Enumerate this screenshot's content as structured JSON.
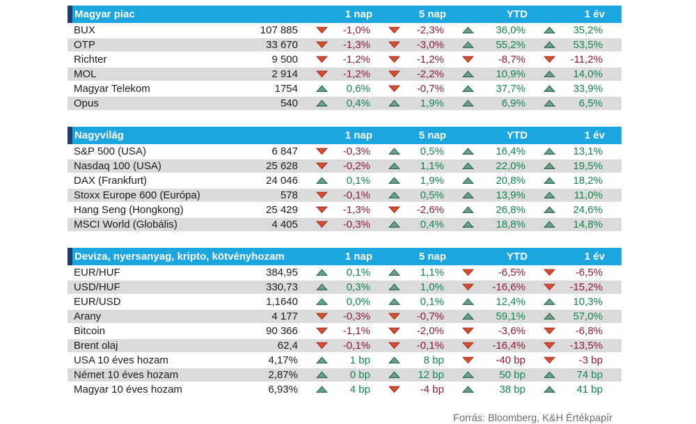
{
  "colors": {
    "header_cyan": "#1BA6DF",
    "accent_navy": "#1F3F6E",
    "row_gray": "#DBDBDB",
    "up_triangle_fill": "#6CA089",
    "up_triangle_stroke": "#2F6B52",
    "down_triangle_fill": "#D05030",
    "down_triangle_stroke": "#A83226",
    "up_text": "#12854C",
    "down_text": "#8E1A38"
  },
  "footer": {
    "source": "Forrás: Bloomberg, K&H Értékpapír"
  },
  "chart_data": [
    {
      "type": "table",
      "title": "Magyar piac",
      "columns": [
        "1 nap",
        "5 nap",
        "YTD",
        "1 év"
      ],
      "rows": [
        {
          "name": "BUX",
          "value": "107 885",
          "changes": [
            {
              "dir": "down",
              "text": "-1,0%"
            },
            {
              "dir": "down",
              "text": "-2,3%"
            },
            {
              "dir": "up",
              "text": "36,0%"
            },
            {
              "dir": "up",
              "text": "35,2%"
            }
          ]
        },
        {
          "name": "OTP",
          "value": "33 670",
          "changes": [
            {
              "dir": "down",
              "text": "-1,3%"
            },
            {
              "dir": "down",
              "text": "-3,0%"
            },
            {
              "dir": "up",
              "text": "55,2%"
            },
            {
              "dir": "up",
              "text": "53,5%"
            }
          ]
        },
        {
          "name": "Richter",
          "value": "9 500",
          "changes": [
            {
              "dir": "down",
              "text": "-1,2%"
            },
            {
              "dir": "down",
              "text": "-1,2%"
            },
            {
              "dir": "down",
              "text": "-8,7%"
            },
            {
              "dir": "down",
              "text": "-11,2%"
            }
          ]
        },
        {
          "name": "MOL",
          "value": "2 914",
          "changes": [
            {
              "dir": "down",
              "text": "-1,2%"
            },
            {
              "dir": "down",
              "text": "-2,2%"
            },
            {
              "dir": "up",
              "text": "10,9%"
            },
            {
              "dir": "up",
              "text": "14,0%"
            }
          ]
        },
        {
          "name": "Magyar Telekom",
          "value": "1754",
          "changes": [
            {
              "dir": "up",
              "text": "0,6%"
            },
            {
              "dir": "down",
              "text": "-0,7%"
            },
            {
              "dir": "up",
              "text": "37,7%"
            },
            {
              "dir": "up",
              "text": "33,9%"
            }
          ]
        },
        {
          "name": "Opus",
          "value": "540",
          "changes": [
            {
              "dir": "up",
              "text": "0,4%"
            },
            {
              "dir": "up",
              "text": "1,9%"
            },
            {
              "dir": "up",
              "text": "6,9%"
            },
            {
              "dir": "up",
              "text": "6,5%"
            }
          ]
        }
      ]
    },
    {
      "type": "table",
      "title": "Nagyvilág",
      "columns": [
        "1 nap",
        "5 nap",
        "YTD",
        "1 év"
      ],
      "rows": [
        {
          "name": "S&P 500 (USA)",
          "value": "6 847",
          "changes": [
            {
              "dir": "down",
              "text": "-0,3%"
            },
            {
              "dir": "up",
              "text": "0,5%"
            },
            {
              "dir": "up",
              "text": "16,4%"
            },
            {
              "dir": "up",
              "text": "13,1%"
            }
          ]
        },
        {
          "name": "Nasdaq 100 (USA)",
          "value": "25 628",
          "changes": [
            {
              "dir": "down",
              "text": "-0,2%"
            },
            {
              "dir": "up",
              "text": "1,1%"
            },
            {
              "dir": "up",
              "text": "22,0%"
            },
            {
              "dir": "up",
              "text": "19,5%"
            }
          ]
        },
        {
          "name": "DAX (Frankfurt)",
          "value": "24 046",
          "changes": [
            {
              "dir": "up",
              "text": "0,1%"
            },
            {
              "dir": "up",
              "text": "1,9%"
            },
            {
              "dir": "up",
              "text": "20,8%"
            },
            {
              "dir": "up",
              "text": "18,2%"
            }
          ]
        },
        {
          "name": "Stoxx Europe 600 (Európa)",
          "value": "578",
          "changes": [
            {
              "dir": "down",
              "text": "-0,1%"
            },
            {
              "dir": "up",
              "text": "0,5%"
            },
            {
              "dir": "up",
              "text": "13,9%"
            },
            {
              "dir": "up",
              "text": "11,0%"
            }
          ]
        },
        {
          "name": "Hang Seng (Hongkong)",
          "value": "25 429",
          "changes": [
            {
              "dir": "down",
              "text": "-1,3%"
            },
            {
              "dir": "down",
              "text": "-2,6%"
            },
            {
              "dir": "up",
              "text": "26,8%"
            },
            {
              "dir": "up",
              "text": "24,6%"
            }
          ]
        },
        {
          "name": "MSCI World (Globális)",
          "value": "4 405",
          "changes": [
            {
              "dir": "down",
              "text": "-0,3%"
            },
            {
              "dir": "up",
              "text": "0,4%"
            },
            {
              "dir": "up",
              "text": "18,8%"
            },
            {
              "dir": "up",
              "text": "14,8%"
            }
          ]
        }
      ]
    },
    {
      "type": "table",
      "title": "Deviza, nyersanyag, kripto, kötvényhozam",
      "columns": [
        "1 nap",
        "5 nap",
        "YTD",
        "1 év"
      ],
      "rows": [
        {
          "name": "EUR/HUF",
          "value": "384,95",
          "changes": [
            {
              "dir": "up",
              "text": "0,1%"
            },
            {
              "dir": "up",
              "text": "1,1%"
            },
            {
              "dir": "down",
              "text": "-6,5%"
            },
            {
              "dir": "down",
              "text": "-6,5%"
            }
          ]
        },
        {
          "name": "USD/HUF",
          "value": "330,73",
          "changes": [
            {
              "dir": "up",
              "text": "0,3%"
            },
            {
              "dir": "up",
              "text": "1,0%"
            },
            {
              "dir": "down",
              "text": "-16,6%"
            },
            {
              "dir": "down",
              "text": "-15,2%"
            }
          ]
        },
        {
          "name": "EUR/USD",
          "value": "1,1640",
          "changes": [
            {
              "dir": "up",
              "text": "0,0%"
            },
            {
              "dir": "up",
              "text": "0,1%"
            },
            {
              "dir": "up",
              "text": "12,4%"
            },
            {
              "dir": "up",
              "text": "10,3%"
            }
          ]
        },
        {
          "name": "Arany",
          "value": "4 177",
          "changes": [
            {
              "dir": "down",
              "text": "-0,3%"
            },
            {
              "dir": "down",
              "text": "-0,7%"
            },
            {
              "dir": "up",
              "text": "59,1%"
            },
            {
              "dir": "up",
              "text": "57,0%"
            }
          ]
        },
        {
          "name": "Bitcoin",
          "value": "90 366",
          "changes": [
            {
              "dir": "down",
              "text": "-1,1%"
            },
            {
              "dir": "down",
              "text": "-2,0%"
            },
            {
              "dir": "down",
              "text": "-3,6%"
            },
            {
              "dir": "down",
              "text": "-6,8%"
            }
          ]
        },
        {
          "name": "Brent olaj",
          "value": "62,4",
          "changes": [
            {
              "dir": "down",
              "text": "-0,1%"
            },
            {
              "dir": "down",
              "text": "-0,1%"
            },
            {
              "dir": "down",
              "text": "-16,4%"
            },
            {
              "dir": "down",
              "text": "-13,5%"
            }
          ]
        },
        {
          "name": "USA 10 éves hozam",
          "value": "4,17%",
          "changes": [
            {
              "dir": "up",
              "text": "1 bp"
            },
            {
              "dir": "up",
              "text": "8 bp"
            },
            {
              "dir": "down",
              "text": "-40 bp"
            },
            {
              "dir": "down",
              "text": "-3 bp"
            }
          ]
        },
        {
          "name": "Német 10 éves hozam",
          "value": "2,87%",
          "changes": [
            {
              "dir": "up",
              "text": "0 bp"
            },
            {
              "dir": "up",
              "text": "12 bp"
            },
            {
              "dir": "up",
              "text": "50 bp"
            },
            {
              "dir": "up",
              "text": "74 bp"
            }
          ]
        },
        {
          "name": "Magyar 10 éves hozam",
          "value": "6,93%",
          "changes": [
            {
              "dir": "up",
              "text": "4 bp"
            },
            {
              "dir": "down",
              "text": "-4 bp"
            },
            {
              "dir": "up",
              "text": "38 bp"
            },
            {
              "dir": "up",
              "text": "41 bp"
            }
          ]
        }
      ]
    }
  ]
}
